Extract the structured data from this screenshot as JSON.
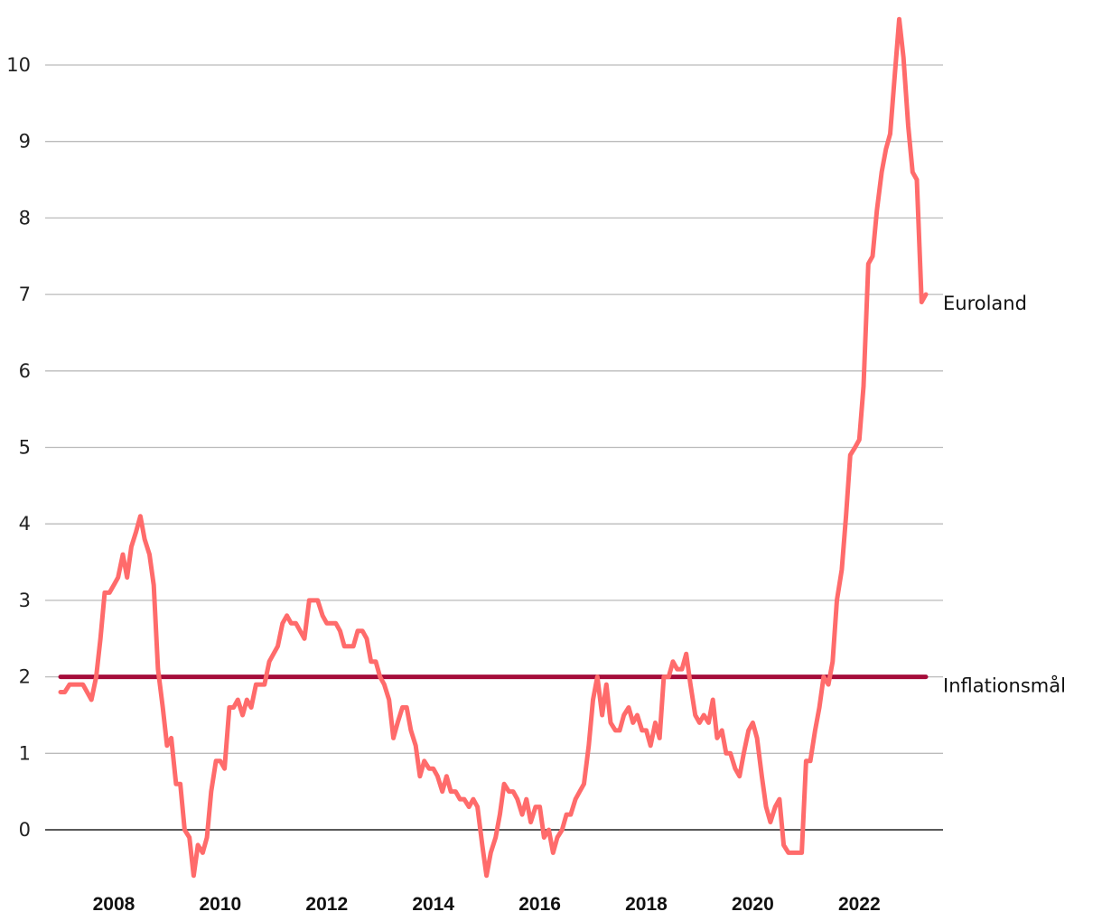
{
  "chart_data": {
    "type": "line",
    "title": "",
    "xlabel": "",
    "ylabel": "",
    "xlim": [
      2007.0,
      2023.25
    ],
    "ylim": [
      -0.6,
      10.6
    ],
    "yticks": [
      0,
      1,
      2,
      3,
      4,
      5,
      6,
      7,
      8,
      9,
      10
    ],
    "xticks": [
      "2008",
      "2010",
      "2012",
      "2014",
      "2016",
      "2018",
      "2020",
      "2022"
    ],
    "grid": "horizontal",
    "colors": {
      "euroland": "#ff6b6b",
      "target": "#a50c3a",
      "grid": "#bbbbbb",
      "zero_line": "#222222"
    },
    "series": [
      {
        "name": "Euroland",
        "x": [
          2007.0,
          2007.08,
          2007.17,
          2007.25,
          2007.42,
          2007.58,
          2007.67,
          2007.75,
          2007.83,
          2007.92,
          2008.0,
          2008.08,
          2008.17,
          2008.25,
          2008.33,
          2008.42,
          2008.5,
          2008.58,
          2008.67,
          2008.75,
          2008.83,
          2008.92,
          2009.0,
          2009.08,
          2009.17,
          2009.25,
          2009.33,
          2009.42,
          2009.5,
          2009.58,
          2009.67,
          2009.75,
          2009.83,
          2009.92,
          2010.0,
          2010.08,
          2010.17,
          2010.25,
          2010.33,
          2010.42,
          2010.5,
          2010.58,
          2010.67,
          2010.75,
          2010.83,
          2010.92,
          2011.0,
          2011.08,
          2011.17,
          2011.25,
          2011.33,
          2011.42,
          2011.5,
          2011.58,
          2011.67,
          2011.75,
          2011.83,
          2011.92,
          2012.0,
          2012.08,
          2012.17,
          2012.25,
          2012.33,
          2012.42,
          2012.5,
          2012.58,
          2012.67,
          2012.75,
          2012.83,
          2012.92,
          2013.0,
          2013.08,
          2013.17,
          2013.25,
          2013.33,
          2013.42,
          2013.5,
          2013.58,
          2013.67,
          2013.75,
          2013.83,
          2013.92,
          2014.0,
          2014.08,
          2014.17,
          2014.25,
          2014.33,
          2014.42,
          2014.5,
          2014.58,
          2014.67,
          2014.75,
          2014.83,
          2014.92,
          2015.0,
          2015.08,
          2015.17,
          2015.25,
          2015.33,
          2015.42,
          2015.5,
          2015.58,
          2015.67,
          2015.75,
          2015.83,
          2015.92,
          2016.0,
          2016.08,
          2016.17,
          2016.25,
          2016.33,
          2016.42,
          2016.5,
          2016.58,
          2016.67,
          2016.75,
          2016.83,
          2016.92,
          2017.0,
          2017.08,
          2017.17,
          2017.25,
          2017.33,
          2017.42,
          2017.5,
          2017.58,
          2017.67,
          2017.75,
          2017.83,
          2017.92,
          2018.0,
          2018.08,
          2018.17,
          2018.25,
          2018.33,
          2018.42,
          2018.5,
          2018.58,
          2018.67,
          2018.75,
          2018.83,
          2018.92,
          2019.0,
          2019.08,
          2019.17,
          2019.25,
          2019.33,
          2019.42,
          2019.5,
          2019.58,
          2019.67,
          2019.75,
          2019.83,
          2019.92,
          2020.0,
          2020.08,
          2020.17,
          2020.25,
          2020.33,
          2020.42,
          2020.5,
          2020.58,
          2020.67,
          2020.75,
          2020.83,
          2020.92,
          2021.0,
          2021.08,
          2021.17,
          2021.25,
          2021.33,
          2021.42,
          2021.5,
          2021.58,
          2021.67,
          2021.75,
          2021.83,
          2021.92,
          2022.0,
          2022.08,
          2022.17,
          2022.25,
          2022.33,
          2022.42,
          2022.5,
          2022.58,
          2022.67,
          2022.75,
          2022.83,
          2022.92,
          2023.0,
          2023.08,
          2023.17,
          2023.25
        ],
        "values": [
          1.8,
          1.8,
          1.9,
          1.9,
          1.9,
          1.7,
          2.0,
          2.5,
          3.1,
          3.1,
          3.2,
          3.3,
          3.6,
          3.3,
          3.7,
          3.9,
          4.1,
          3.8,
          3.6,
          3.2,
          2.1,
          1.6,
          1.1,
          1.2,
          0.6,
          0.6,
          0.0,
          -0.1,
          -0.6,
          -0.2,
          -0.3,
          -0.1,
          0.5,
          0.9,
          0.9,
          0.8,
          1.6,
          1.6,
          1.7,
          1.5,
          1.7,
          1.6,
          1.9,
          1.9,
          1.9,
          2.2,
          2.3,
          2.4,
          2.7,
          2.8,
          2.7,
          2.7,
          2.6,
          2.5,
          3.0,
          3.0,
          3.0,
          2.8,
          2.7,
          2.7,
          2.7,
          2.6,
          2.4,
          2.4,
          2.4,
          2.6,
          2.6,
          2.5,
          2.2,
          2.2,
          2.0,
          1.9,
          1.7,
          1.2,
          1.4,
          1.6,
          1.6,
          1.3,
          1.1,
          0.7,
          0.9,
          0.8,
          0.8,
          0.7,
          0.5,
          0.7,
          0.5,
          0.5,
          0.4,
          0.4,
          0.3,
          0.4,
          0.3,
          -0.2,
          -0.6,
          -0.3,
          -0.1,
          0.2,
          0.6,
          0.5,
          0.5,
          0.4,
          0.2,
          0.4,
          0.1,
          0.3,
          0.3,
          -0.1,
          0.0,
          -0.3,
          -0.1,
          0.0,
          0.2,
          0.2,
          0.4,
          0.5,
          0.6,
          1.1,
          1.7,
          2.0,
          1.5,
          1.9,
          1.4,
          1.3,
          1.3,
          1.5,
          1.6,
          1.4,
          1.5,
          1.3,
          1.3,
          1.1,
          1.4,
          1.2,
          2.0,
          2.0,
          2.2,
          2.1,
          2.1,
          2.3,
          1.9,
          1.5,
          1.4,
          1.5,
          1.4,
          1.7,
          1.2,
          1.3,
          1.0,
          1.0,
          0.8,
          0.7,
          1.0,
          1.3,
          1.4,
          1.2,
          0.7,
          0.3,
          0.1,
          0.3,
          0.4,
          -0.2,
          -0.3,
          -0.3,
          -0.3,
          -0.3,
          0.9,
          0.9,
          1.3,
          1.6,
          2.0,
          1.9,
          2.2,
          3.0,
          3.4,
          4.1,
          4.9,
          5.0,
          5.1,
          5.8,
          7.4,
          7.5,
          8.1,
          8.6,
          8.9,
          9.1,
          9.9,
          10.6,
          10.1,
          9.2,
          8.6,
          8.5,
          6.9,
          7.0
        ],
        "label": "Euroland"
      },
      {
        "name": "Inflationsmål",
        "x": [
          2007.0,
          2023.25
        ],
        "values": [
          2.0,
          2.0
        ],
        "label": "Inflationsmål"
      }
    ]
  }
}
